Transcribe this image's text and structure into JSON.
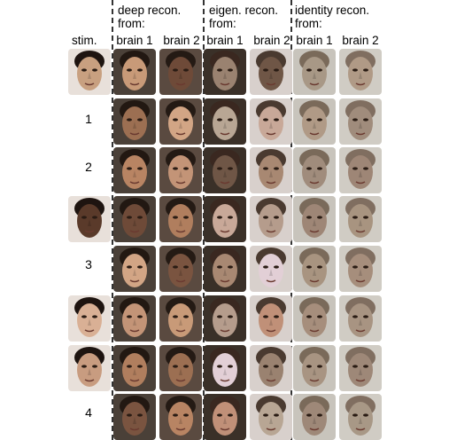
{
  "headers": {
    "stim": "stim.",
    "deep": {
      "line1": "deep recon.",
      "line2": "from:"
    },
    "eigen": {
      "line1": "eigen. recon.",
      "line2": "from:"
    },
    "identity": {
      "line1": "identity recon.",
      "line2": "from:"
    },
    "brain1": "brain 1",
    "brain2": "brain 2"
  },
  "row_labels": [
    "",
    "1",
    "2",
    "",
    "3",
    "",
    "",
    "4"
  ],
  "palette": {
    "deep": [
      "#c89a78",
      "#9c6f52",
      "#b88463",
      "#6e4a38",
      "#d2a585",
      "#c39477",
      "#b07e5e",
      "#7a5440"
    ],
    "eigen": [
      "#9a8270",
      "#b8a694",
      "#6f5646",
      "#c8a898",
      "#a88872",
      "#b59c8c",
      "#e2cfd6",
      "#c09078"
    ],
    "identity": [
      "#a89886",
      "#b09a86",
      "#a08c7c",
      "#9e8676",
      "#a89480",
      "#a68e7c",
      "#a89482",
      "#9e8878"
    ],
    "stim": [
      "#c8a080",
      "#5a3a2a",
      "#d9b095",
      "#c89c80"
    ]
  }
}
